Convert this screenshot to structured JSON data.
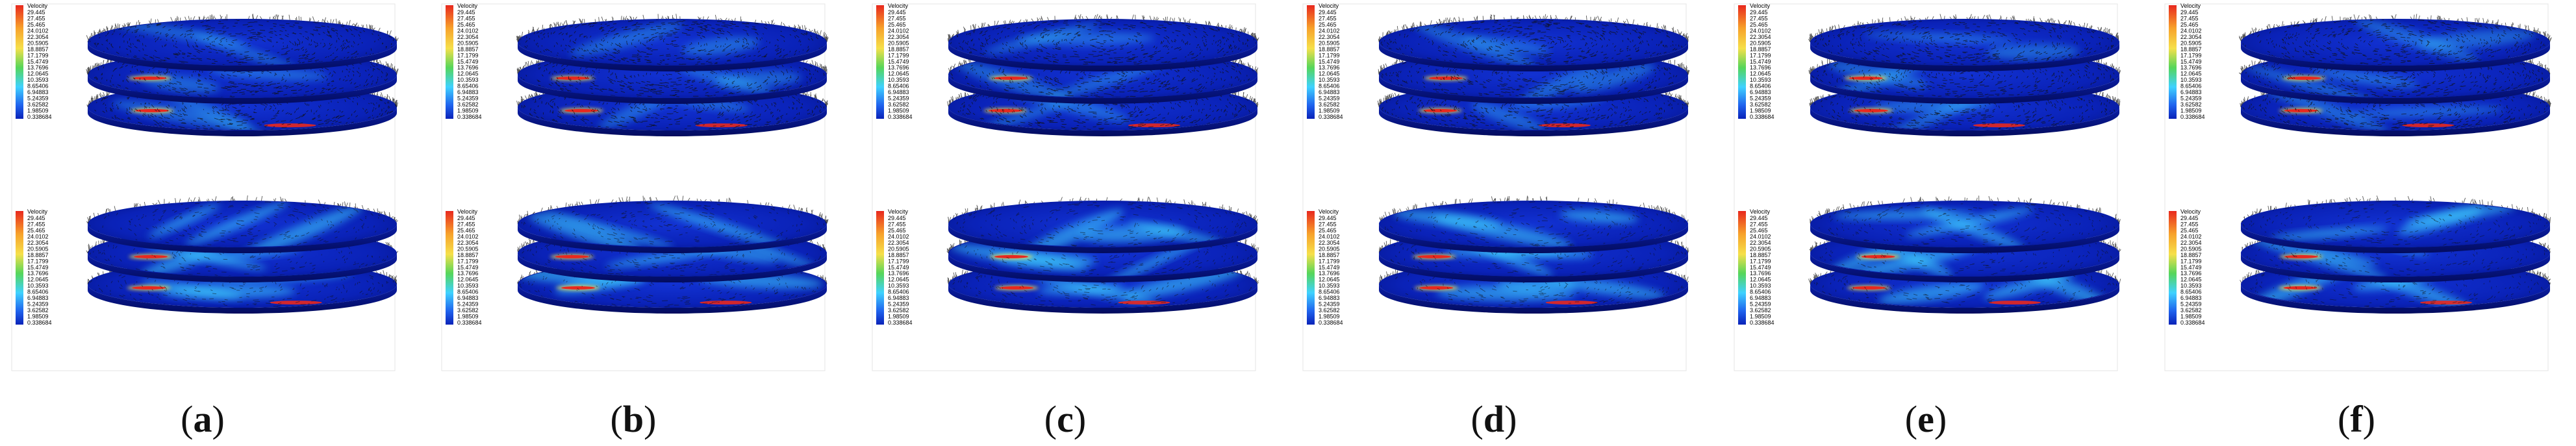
{
  "figure": {
    "panels": [
      {
        "letter": "a"
      },
      {
        "letter": "b"
      },
      {
        "letter": "c"
      },
      {
        "letter": "d"
      },
      {
        "letter": "e"
      },
      {
        "letter": "f"
      }
    ],
    "colorbar": {
      "title": "Velocity",
      "ticks": [
        "29.445",
        "27.455",
        "25.465",
        "24.0102",
        "22.3054",
        "20.5905",
        "18.8857",
        "17.1799",
        "15.4749",
        "13.7696",
        "12.0645",
        "10.3593",
        "8.65406",
        "6.94883",
        "5.24359",
        "3.62582",
        "1.98509",
        "0.338684"
      ]
    },
    "colors": {
      "background": "#ffffff",
      "field_base": "#0a22b8",
      "field_dark": "#031070",
      "jet_cyan": "#3fd2ff",
      "jet_yellow": "#f6e04a",
      "jet_red": "#e8281e",
      "vectors": "#111111"
    }
  }
}
